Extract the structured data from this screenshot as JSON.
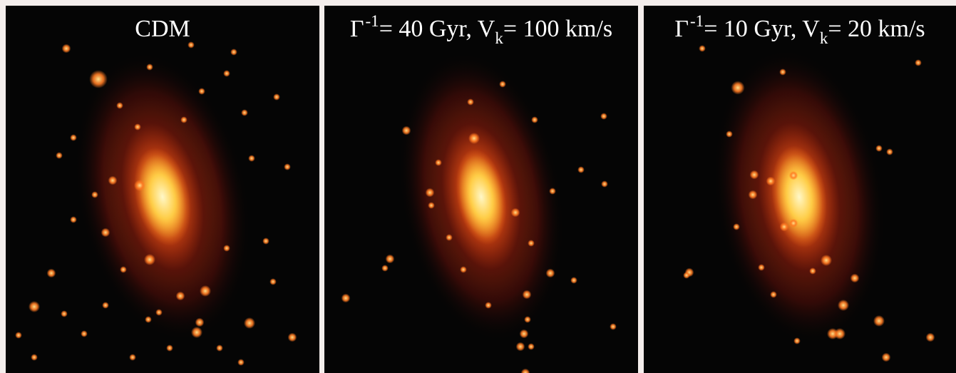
{
  "panels": [
    {
      "model": "CDM",
      "halo": {
        "angle": -12,
        "outer": [
          118,
          205
        ],
        "mid": [
          78,
          150
        ],
        "core": [
          38,
          70
        ]
      },
      "subhalos": [
        [
          130,
          103,
          8
        ],
        [
          85,
          60,
          4
        ],
        [
          202,
          86,
          3
        ],
        [
          380,
          128,
          3
        ],
        [
          395,
          226,
          3
        ],
        [
          345,
          214,
          3
        ],
        [
          150,
          245,
          4
        ],
        [
          188,
          252,
          5
        ],
        [
          125,
          265,
          3
        ],
        [
          140,
          318,
          4
        ],
        [
          202,
          356,
          5
        ],
        [
          165,
          370,
          3
        ],
        [
          245,
          407,
          4
        ],
        [
          280,
          400,
          5
        ],
        [
          272,
          444,
          4
        ],
        [
          268,
          458,
          5
        ],
        [
          342,
          445,
          5
        ],
        [
          402,
          465,
          4
        ],
        [
          375,
          387,
          3
        ],
        [
          64,
          375,
          4
        ],
        [
          40,
          422,
          5
        ],
        [
          18,
          462,
          3
        ],
        [
          40,
          493,
          3
        ],
        [
          215,
          430,
          3
        ],
        [
          300,
          480,
          3
        ],
        [
          330,
          500,
          3
        ],
        [
          178,
          493,
          3
        ],
        [
          110,
          460,
          3
        ],
        [
          82,
          432,
          3
        ],
        [
          310,
          340,
          3
        ],
        [
          365,
          330,
          3
        ],
        [
          230,
          480,
          3
        ],
        [
          95,
          300,
          3
        ],
        [
          335,
          150,
          3
        ],
        [
          250,
          160,
          3
        ],
        [
          185,
          170,
          3
        ],
        [
          160,
          140,
          3
        ],
        [
          275,
          120,
          3
        ],
        [
          310,
          95,
          3
        ],
        [
          385,
          520,
          3
        ],
        [
          260,
          55,
          3
        ],
        [
          320,
          65,
          3
        ],
        [
          200,
          440,
          3
        ],
        [
          140,
          420,
          3
        ],
        [
          95,
          185,
          3
        ],
        [
          75,
          210,
          3
        ]
      ]
    },
    {
      "model_prefix": "Γ",
      "model_exp": "-1",
      "model_mid": "= 40 Gyr, V",
      "model_sub": "k",
      "model_suffix": "= 100 km/s",
      "halo": {
        "angle": -10,
        "outer": [
          112,
          205
        ],
        "mid": [
          76,
          148
        ],
        "core": [
          34,
          68
        ]
      },
      "subhalos": [
        [
          115,
          175,
          4
        ],
        [
          210,
          186,
          5
        ],
        [
          295,
          160,
          3
        ],
        [
          392,
          155,
          3
        ],
        [
          393,
          250,
          3
        ],
        [
          148,
          262,
          4
        ],
        [
          150,
          280,
          3
        ],
        [
          175,
          325,
          3
        ],
        [
          268,
          290,
          4
        ],
        [
          290,
          333,
          3
        ],
        [
          317,
          375,
          4
        ],
        [
          350,
          385,
          3
        ],
        [
          284,
          405,
          4
        ],
        [
          285,
          440,
          3
        ],
        [
          280,
          460,
          4
        ],
        [
          275,
          478,
          4
        ],
        [
          290,
          478,
          3
        ],
        [
          92,
          355,
          4
        ],
        [
          85,
          368,
          3
        ],
        [
          30,
          410,
          4
        ],
        [
          282,
          515,
          4
        ],
        [
          405,
          450,
          3
        ],
        [
          195,
          370,
          3
        ],
        [
          230,
          420,
          3
        ],
        [
          250,
          110,
          3
        ],
        [
          360,
          230,
          3
        ],
        [
          320,
          260,
          3
        ],
        [
          205,
          135,
          3
        ],
        [
          160,
          220,
          3
        ]
      ]
    },
    {
      "model_prefix": "Γ",
      "model_exp": "-1",
      "model_mid": "= 10 Gyr, V",
      "model_sub": "k",
      "model_suffix": "= 20 km/s",
      "halo": {
        "angle": -8,
        "outer": [
          118,
          208
        ],
        "mid": [
          80,
          150
        ],
        "core": [
          38,
          72
        ]
      },
      "subhalos": [
        [
          132,
          115,
          6
        ],
        [
          195,
          93,
          3
        ],
        [
          155,
          237,
          4
        ],
        [
          178,
          246,
          4
        ],
        [
          210,
          238,
          4
        ],
        [
          153,
          265,
          4
        ],
        [
          130,
          310,
          3
        ],
        [
          197,
          310,
          4
        ],
        [
          210,
          305,
          4
        ],
        [
          256,
          357,
          5
        ],
        [
          237,
          372,
          3
        ],
        [
          165,
          367,
          3
        ],
        [
          296,
          382,
          4
        ],
        [
          280,
          420,
          5
        ],
        [
          265,
          460,
          5
        ],
        [
          275,
          460,
          5
        ],
        [
          330,
          442,
          5
        ],
        [
          340,
          493,
          4
        ],
        [
          402,
          465,
          4
        ],
        [
          64,
          374,
          4
        ],
        [
          60,
          378,
          3
        ],
        [
          82,
          60,
          3
        ],
        [
          182,
          405,
          3
        ],
        [
          215,
          470,
          3
        ],
        [
          385,
          80,
          3
        ],
        [
          330,
          200,
          3
        ],
        [
          345,
          205,
          3
        ],
        [
          120,
          180,
          3
        ]
      ]
    }
  ],
  "colors": {
    "background": "#050505",
    "frame": "#f4eeec",
    "halo_outer": "#4a0d08",
    "halo_mid": "#b8360f",
    "halo_core": "#ffd24a",
    "subhalo": "#ff7a22",
    "label": "#ffffff"
  }
}
